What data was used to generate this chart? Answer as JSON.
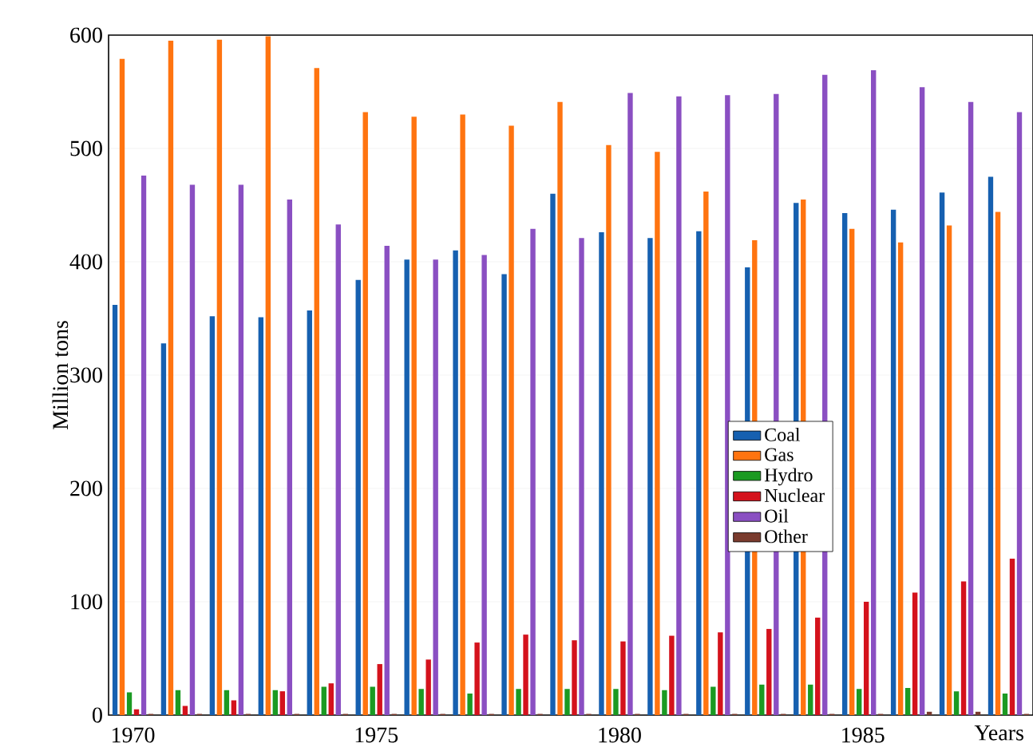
{
  "chart_data": {
    "type": "bar",
    "xlabel": "Years",
    "ylabel": "Million tons",
    "x": [
      1970,
      1971,
      1972,
      1973,
      1974,
      1975,
      1976,
      1977,
      1978,
      1979,
      1980,
      1981,
      1982,
      1983,
      1984,
      1985,
      1986,
      1987,
      1988
    ],
    "series": [
      {
        "name": "Coal",
        "color": "#1660b0",
        "values": [
          362,
          328,
          352,
          351,
          357,
          384,
          402,
          410,
          389,
          460,
          426,
          421,
          427,
          395,
          452,
          443,
          446,
          461,
          475
        ]
      },
      {
        "name": "Gas",
        "color": "#ff7410",
        "values": [
          579,
          595,
          596,
          599,
          571,
          532,
          528,
          530,
          520,
          541,
          503,
          497,
          462,
          419,
          455,
          429,
          417,
          432,
          444
        ]
      },
      {
        "name": "Hydro",
        "color": "#1b9a22",
        "values": [
          20,
          22,
          22,
          22,
          25,
          25,
          23,
          19,
          23,
          23,
          23,
          22,
          25,
          27,
          27,
          23,
          24,
          21,
          19
        ]
      },
      {
        "name": "Nuclear",
        "color": "#d4121c",
        "values": [
          5,
          8,
          13,
          21,
          28,
          45,
          49,
          64,
          71,
          66,
          65,
          70,
          73,
          76,
          86,
          100,
          108,
          118,
          138
        ]
      },
      {
        "name": "Oil",
        "color": "#8a4fc2",
        "values": [
          476,
          468,
          468,
          455,
          433,
          414,
          402,
          406,
          429,
          421,
          549,
          546,
          547,
          548,
          565,
          569,
          554,
          541,
          532
        ]
      },
      {
        "name": "Other",
        "color": "#7a3b2e",
        "values": [
          1,
          1,
          1,
          1,
          1,
          1,
          1,
          1,
          1,
          1,
          1,
          1,
          1,
          1,
          1,
          1,
          3,
          3,
          1
        ]
      }
    ],
    "xlim": [
      1969.5,
      1988.5
    ],
    "xticks": [
      1970,
      1975,
      1980,
      1985
    ],
    "ylim": [
      0,
      600
    ],
    "yticks": [
      0,
      100,
      200,
      300,
      400,
      500,
      600
    ],
    "grid": "y",
    "legend": "right"
  }
}
